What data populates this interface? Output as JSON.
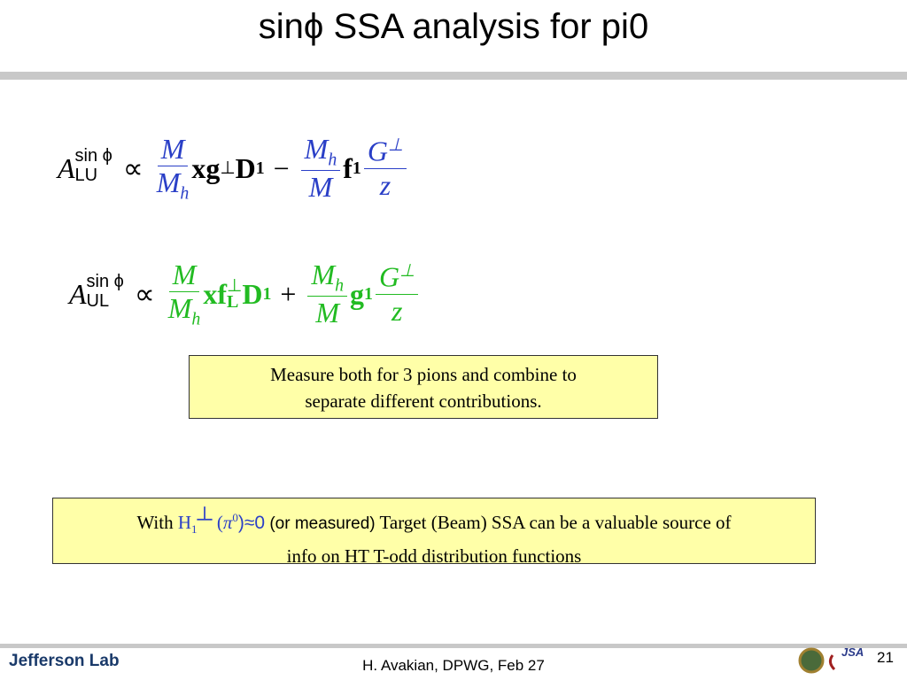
{
  "header": {
    "title": "sinϕ  SSA analysis for pi0"
  },
  "equations": [
    {
      "lhs": "A",
      "lhs_sup": "sin ϕ",
      "lhs_sub": "LU",
      "relation": "∝",
      "frac1": {
        "num": "M",
        "den": "M",
        "den_sub": "h"
      },
      "term1": "xg",
      "term1_sup": "⊥",
      "term1_b": "D",
      "term1_b_sub": "1",
      "op": "−",
      "frac2": {
        "num": "M",
        "num_sub": "h",
        "den": "M"
      },
      "term2": "f",
      "term2_sub": "1",
      "frac3": {
        "num": "G",
        "num_sup": "⊥",
        "den": "z"
      }
    },
    {
      "lhs": "A",
      "lhs_sup": "sin ϕ",
      "lhs_sub": "UL",
      "relation": "∝",
      "frac1": {
        "num": "M",
        "den": "M",
        "den_sub": "h"
      },
      "term1": "xf",
      "term1_sup": "⊥",
      "term1_sub": "L",
      "term1_b": "D",
      "term1_b_sub": "1",
      "op": "+",
      "frac2": {
        "num": "M",
        "num_sub": "h",
        "den": "M"
      },
      "term2": "g",
      "term2_sub": "1",
      "frac3": {
        "num": "G",
        "num_sup": "⊥",
        "den": "z"
      }
    }
  ],
  "box1": {
    "lines": [
      "Measure both for 3 pions and combine to",
      "separate different contributions."
    ]
  },
  "box2": {
    "with": "With",
    "h": "H",
    "h_sub": "1",
    "h_sup": "┴",
    "open": "(",
    "pi": "π",
    "pi_sup": "0",
    "approx": ")≈0",
    "note": "(or measured)",
    "rest": "Target (Beam) SSA can be a valuable source of",
    "line2": "info on HT T-odd distribution functions"
  },
  "footer": {
    "logo": "Jefferson Lab",
    "credit": "H. Avakian, DPWG, Feb 27",
    "jsa": "JSA",
    "page": "21"
  }
}
